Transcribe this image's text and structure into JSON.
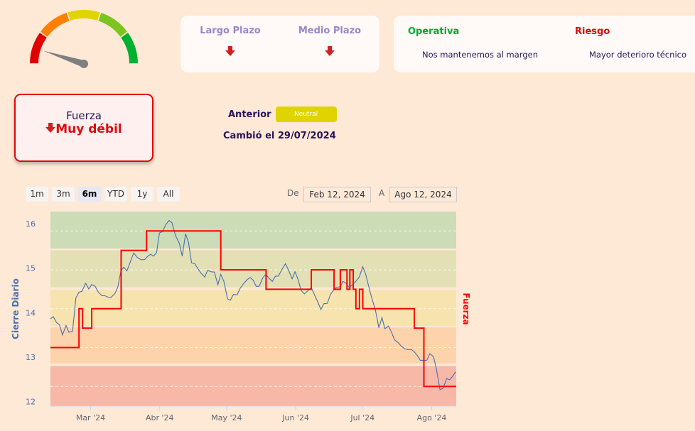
{
  "gauge": {
    "value_fraction": 0.1,
    "segment_colors": [
      "#e00000",
      "#ff8000",
      "#e0d400",
      "#7cc520",
      "#00b030"
    ],
    "needle_color": "#808080"
  },
  "horizons": [
    {
      "label": "Largo Plazo",
      "trend_icon": "arrow-down-icon"
    },
    {
      "label": "Medio Plazo",
      "trend_icon": "arrow-down-icon"
    }
  ],
  "operativa": {
    "title": "Operativa",
    "text": "Nos mantenemos al margen",
    "color": "#00a830"
  },
  "riesgo": {
    "title": "Riesgo",
    "text": "Mayor deterioro técnico",
    "color": "#dd0a0a"
  },
  "fuerza": {
    "label": "Fuerza",
    "value": "Muy débil",
    "trend_icon": "arrow-down-icon"
  },
  "anterior": {
    "label": "Anterior",
    "badge": "Neutral",
    "badge_color": "#e0d400"
  },
  "changed": "Cambió el 29/07/2024",
  "range_selector": {
    "buttons": [
      "1m",
      "3m",
      "6m",
      "YTD",
      "1y",
      "All"
    ],
    "selected": "6m",
    "from_label": "De",
    "from_value": "Feb 12, 2024",
    "to_label": "A",
    "to_value": "Ago 12, 2024"
  },
  "chart_data": {
    "type": "line",
    "start_date": "2024-02-12",
    "end_date": "2024-08-12",
    "x_unit": "days since start",
    "ylabel": "Cierre Diario",
    "ylabel2": "Fuerza",
    "ylim": [
      11.9,
      16.27
    ],
    "yticks": [
      12,
      13,
      14,
      15,
      16
    ],
    "y2lim": [
      0.5,
      5.5
    ],
    "xticks": [
      {
        "day": 18,
        "label": "Mar '24"
      },
      {
        "day": 49,
        "label": "Abr '24"
      },
      {
        "day": 79,
        "label": "May '24"
      },
      {
        "day": 110,
        "label": "Jun '24"
      },
      {
        "day": 140,
        "label": "Jul '24"
      },
      {
        "day": 171,
        "label": "Ago '24"
      }
    ],
    "bands": [
      {
        "from": 15.44,
        "to": 16.27,
        "color": "#cbdcb6"
      },
      {
        "from": 14.57,
        "to": 15.4,
        "color": "#e2e0b4"
      },
      {
        "from": 13.7,
        "to": 14.51,
        "color": "#f7e3ae"
      },
      {
        "from": 12.86,
        "to": 13.67,
        "color": "#fcd3ab"
      },
      {
        "from": 11.9,
        "to": 12.8,
        "color": "#f7b8a8"
      }
    ],
    "series": [
      {
        "name": "Cierre Diario",
        "color": "#4a6fae",
        "points": [
          [
            0,
            13.86
          ],
          [
            1.3,
            13.91
          ],
          [
            2.7,
            13.78
          ],
          [
            4,
            13.73
          ],
          [
            5.4,
            13.5
          ],
          [
            7,
            13.71
          ],
          [
            8.3,
            13.56
          ],
          [
            9.9,
            13.58
          ],
          [
            11.4,
            14.33
          ],
          [
            12.8,
            14.46
          ],
          [
            14.1,
            14.48
          ],
          [
            15.8,
            14.66
          ],
          [
            17.2,
            14.53
          ],
          [
            18.5,
            14.63
          ],
          [
            19.9,
            14.6
          ],
          [
            21.5,
            14.46
          ],
          [
            23.1,
            14.38
          ],
          [
            24.4,
            14.38
          ],
          [
            25.8,
            14.35
          ],
          [
            27.1,
            14.34
          ],
          [
            28.9,
            14.43
          ],
          [
            30.2,
            14.57
          ],
          [
            31.6,
            14.94
          ],
          [
            32.9,
            15.02
          ],
          [
            34.3,
            14.94
          ],
          [
            35.9,
            15.15
          ],
          [
            37.3,
            15.34
          ],
          [
            39,
            15.24
          ],
          [
            40.6,
            15.19
          ],
          [
            42.2,
            15.19
          ],
          [
            43.5,
            15.26
          ],
          [
            44.9,
            15.31
          ],
          [
            46.2,
            15.27
          ],
          [
            47.6,
            15.35
          ],
          [
            48.9,
            15.79
          ],
          [
            50.2,
            15.82
          ],
          [
            51.8,
            15.98
          ],
          [
            53.2,
            16.07
          ],
          [
            54.5,
            16.02
          ],
          [
            56.1,
            15.73
          ],
          [
            57.8,
            15.56
          ],
          [
            59.1,
            15.27
          ],
          [
            60.6,
            15.77
          ],
          [
            61.9,
            15.58
          ],
          [
            63.3,
            15.12
          ],
          [
            64.7,
            15.1
          ],
          [
            66.5,
            14.96
          ],
          [
            67.8,
            14.87
          ],
          [
            69.2,
            14.8
          ],
          [
            70.5,
            14.95
          ],
          [
            71.9,
            14.92
          ],
          [
            73.5,
            14.91
          ],
          [
            75.1,
            14.63
          ],
          [
            76.4,
            14.86
          ],
          [
            77.8,
            14.7
          ],
          [
            79.4,
            14.31
          ],
          [
            80.7,
            14.28
          ],
          [
            82.1,
            14.41
          ],
          [
            83.7,
            14.4
          ],
          [
            85,
            14.54
          ],
          [
            86.6,
            14.65
          ],
          [
            88.2,
            14.74
          ],
          [
            89.6,
            14.79
          ],
          [
            90.9,
            14.73
          ],
          [
            92.3,
            14.59
          ],
          [
            93.6,
            14.59
          ],
          [
            95.2,
            14.78
          ],
          [
            96.6,
            14.86
          ],
          [
            97.9,
            14.78
          ],
          [
            99.5,
            14.7
          ],
          [
            100.9,
            14.82
          ],
          [
            102.2,
            14.82
          ],
          [
            103.8,
            14.97
          ],
          [
            105.4,
            15.1
          ],
          [
            106.8,
            14.95
          ],
          [
            108.4,
            14.76
          ],
          [
            109.7,
            14.92
          ],
          [
            111.1,
            14.74
          ],
          [
            112.4,
            14.5
          ],
          [
            113.9,
            14.42
          ],
          [
            115.6,
            14.5
          ],
          [
            117,
            14.56
          ],
          [
            118.6,
            14.38
          ],
          [
            119.9,
            14.24
          ],
          [
            121.3,
            14.07
          ],
          [
            122.6,
            14.2
          ],
          [
            124.2,
            14.21
          ],
          [
            125.6,
            14.41
          ],
          [
            126.9,
            14.5
          ],
          [
            128.3,
            14.57
          ],
          [
            129.9,
            14.58
          ],
          [
            131.2,
            14.7
          ],
          [
            132.6,
            14.66
          ],
          [
            133.9,
            14.57
          ],
          [
            135.3,
            14.62
          ],
          [
            136.9,
            14.7
          ],
          [
            138.5,
            14.8
          ],
          [
            140.1,
            15.03
          ],
          [
            141.4,
            14.86
          ],
          [
            142.8,
            14.58
          ],
          [
            144.1,
            14.33
          ],
          [
            145.7,
            14.07
          ],
          [
            147.3,
            13.66
          ],
          [
            148.7,
            13.89
          ],
          [
            150,
            13.64
          ],
          [
            151.6,
            13.7
          ],
          [
            153,
            13.56
          ],
          [
            154.3,
            13.39
          ],
          [
            155.9,
            13.33
          ],
          [
            157.3,
            13.25
          ],
          [
            158.9,
            13.19
          ],
          [
            160.2,
            13.17
          ],
          [
            161.9,
            13.17
          ],
          [
            163.2,
            13.12
          ],
          [
            164.5,
            13.04
          ],
          [
            165.9,
            12.93
          ],
          [
            167.2,
            12.93
          ],
          [
            168.8,
            12.93
          ],
          [
            170.2,
            13.08
          ],
          [
            171.8,
            13.01
          ],
          [
            173.1,
            12.74
          ],
          [
            174.7,
            12.27
          ],
          [
            176.1,
            12.3
          ],
          [
            177.7,
            12.52
          ],
          [
            179,
            12.49
          ],
          [
            180.4,
            12.57
          ],
          [
            181.7,
            12.67
          ]
        ]
      },
      {
        "name": "Fuerza",
        "color": "#ff0000",
        "step": true,
        "points": [
          [
            0,
            2
          ],
          [
            12.8,
            3
          ],
          [
            14.4,
            2.5
          ],
          [
            18.5,
            3
          ],
          [
            31.7,
            4.5
          ],
          [
            43.1,
            5
          ],
          [
            76.4,
            4
          ],
          [
            96.7,
            3.5
          ],
          [
            117,
            4
          ],
          [
            127.2,
            3.5
          ],
          [
            130,
            4
          ],
          [
            133,
            3.5
          ],
          [
            134.3,
            4
          ],
          [
            135.8,
            3.5
          ],
          [
            137,
            3
          ],
          [
            138.6,
            3.5
          ],
          [
            140.1,
            3
          ],
          [
            163.2,
            2.5
          ],
          [
            167.5,
            1
          ],
          [
            182,
            1
          ]
        ]
      }
    ],
    "fuerza_gridlines": [
      1,
      2,
      3,
      4,
      5
    ]
  }
}
